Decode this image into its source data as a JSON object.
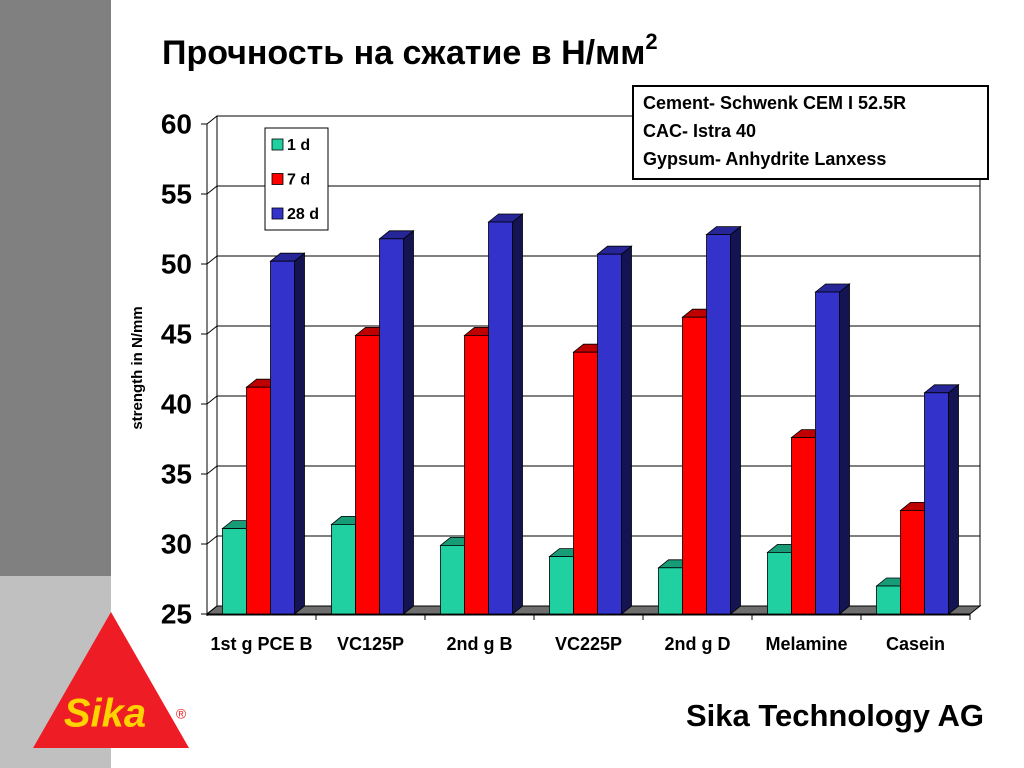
{
  "chart_data": {
    "type": "bar3d",
    "title": "Прочность на сжатие в Н/мм",
    "title_superscript": "2",
    "y_label": "strength in N/mm",
    "annotations": [
      "Cement- Schwenk CEM I 52.5R",
      "CAC- Istra 40",
      "Gypsum- Anhydrite Lanxess"
    ],
    "categories": [
      "1st g PCE B",
      "VC125P",
      "2nd g B",
      "VC225P",
      "2nd g D",
      "Melamine",
      "Casein"
    ],
    "series": [
      {
        "name": "1 d",
        "color": "#20d0a0",
        "values": [
          31.1,
          31.4,
          29.9,
          29.1,
          28.3,
          29.4,
          27.0
        ]
      },
      {
        "name": "7 d",
        "color": "#ff0000",
        "values": [
          41.2,
          44.9,
          44.9,
          43.7,
          46.2,
          37.6,
          32.4
        ]
      },
      {
        "name": "28 d",
        "color": "#3333cc",
        "values": [
          50.2,
          51.8,
          53.0,
          50.7,
          52.1,
          48.0,
          40.8
        ]
      }
    ],
    "ylim": [
      25,
      60
    ],
    "yticks": [
      25,
      30,
      35,
      40,
      45,
      50,
      55,
      60
    ],
    "grid": true,
    "legend": "upper left",
    "footer": "Sika Technology AG",
    "logo": "Sika",
    "logo_mark": "®"
  }
}
